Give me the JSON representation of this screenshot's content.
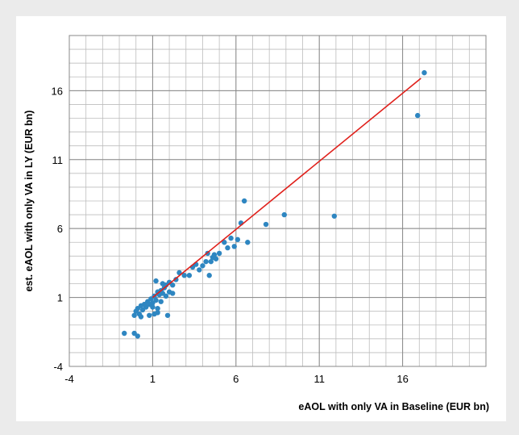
{
  "chart_data": {
    "type": "scatter",
    "xlabel": "eAOL with only VA in Baseline (EUR bn)",
    "ylabel": "est. eAOL with only VA in LY (EUR bn)",
    "xlim": [
      -4,
      21
    ],
    "ylim": [
      -4,
      20
    ],
    "xticks": [
      -4,
      1,
      6,
      11,
      16
    ],
    "yticks": [
      -4,
      1,
      6,
      11,
      16
    ],
    "grid": "major and minor",
    "legend": "none",
    "colors": {
      "points": "#2e86c1",
      "trendline": "#e0201b",
      "grid_major": "#888888",
      "grid_minor": "#bdbdbd",
      "background": "#ebebeb"
    },
    "series": [
      {
        "values": [
          [
            -0.7,
            -1.6
          ],
          [
            -0.1,
            -1.6
          ],
          [
            0.1,
            -1.8
          ],
          [
            -0.1,
            -0.3
          ],
          [
            0.0,
            0.0
          ],
          [
            0.1,
            0.2
          ],
          [
            0.2,
            -0.2
          ],
          [
            0.3,
            0.4
          ],
          [
            0.4,
            0.1
          ],
          [
            0.5,
            0.5
          ],
          [
            0.6,
            0.3
          ],
          [
            0.7,
            0.7
          ],
          [
            0.8,
            0.5
          ],
          [
            0.9,
            0.9
          ],
          [
            1.0,
            0.6
          ],
          [
            1.1,
            1.1
          ],
          [
            1.2,
            0.8
          ],
          [
            1.3,
            1.4
          ],
          [
            1.4,
            1.2
          ],
          [
            1.5,
            1.5
          ],
          [
            1.6,
            1.3
          ],
          [
            1.7,
            1.7
          ],
          [
            1.8,
            1.9
          ],
          [
            2.0,
            2.1
          ],
          [
            2.2,
            1.9
          ],
          [
            2.4,
            2.3
          ],
          [
            0.3,
            -0.4
          ],
          [
            0.8,
            -0.3
          ],
          [
            1.1,
            -0.2
          ],
          [
            1.3,
            -0.1
          ],
          [
            1.9,
            -0.3
          ],
          [
            1.0,
            0.3
          ],
          [
            1.3,
            0.2
          ],
          [
            1.5,
            0.7
          ],
          [
            1.8,
            1.1
          ],
          [
            1.2,
            2.2
          ],
          [
            1.6,
            2.0
          ],
          [
            2.0,
            1.4
          ],
          [
            2.2,
            1.3
          ],
          [
            2.6,
            2.8
          ],
          [
            2.9,
            2.6
          ],
          [
            3.2,
            2.6
          ],
          [
            3.4,
            3.2
          ],
          [
            3.6,
            3.4
          ],
          [
            3.8,
            3.0
          ],
          [
            4.0,
            3.3
          ],
          [
            4.2,
            3.6
          ],
          [
            4.3,
            4.2
          ],
          [
            4.4,
            2.6
          ],
          [
            4.5,
            3.6
          ],
          [
            4.6,
            3.9
          ],
          [
            4.7,
            4.1
          ],
          [
            4.8,
            3.8
          ],
          [
            5.0,
            4.2
          ],
          [
            5.3,
            5.0
          ],
          [
            5.5,
            4.6
          ],
          [
            5.7,
            5.3
          ],
          [
            5.9,
            4.7
          ],
          [
            6.1,
            5.2
          ],
          [
            6.3,
            6.4
          ],
          [
            6.5,
            8.0
          ],
          [
            6.7,
            5.0
          ],
          [
            7.8,
            6.3
          ],
          [
            8.9,
            7.0
          ],
          [
            11.9,
            6.9
          ],
          [
            16.9,
            14.2
          ],
          [
            17.3,
            17.3
          ]
        ]
      }
    ],
    "trendline": {
      "x": [
        1.0,
        17.1
      ],
      "y": [
        1.0,
        16.9
      ]
    }
  }
}
